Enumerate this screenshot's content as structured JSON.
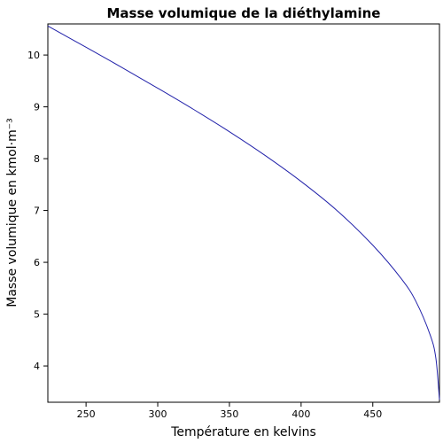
{
  "chart_data": {
    "type": "line",
    "title": "Masse volumique de la diéthylamine",
    "xlabel": "Température en kelvins",
    "ylabel": "Masse volumique en kmol·m⁻³",
    "xlim": [
      223.35,
      496.5
    ],
    "ylim": [
      3.3,
      10.6
    ],
    "x_ticks": [
      250,
      300,
      350,
      400,
      450
    ],
    "y_ticks": [
      4,
      5,
      6,
      7,
      8,
      9,
      10
    ],
    "grid": false,
    "colors": {
      "line": "#2222aa",
      "frame": "#000000"
    },
    "series": [
      {
        "x": [
          223.35,
          250,
          275,
          300,
          325,
          350,
          375,
          400,
          425,
          450,
          470,
          480,
          490,
          494,
          496.5
        ],
        "values": [
          10.56,
          10.15,
          9.76,
          9.36,
          8.95,
          8.52,
          8.06,
          7.56,
          7.0,
          6.33,
          5.68,
          5.25,
          4.6,
          4.15,
          3.35
        ]
      }
    ]
  }
}
